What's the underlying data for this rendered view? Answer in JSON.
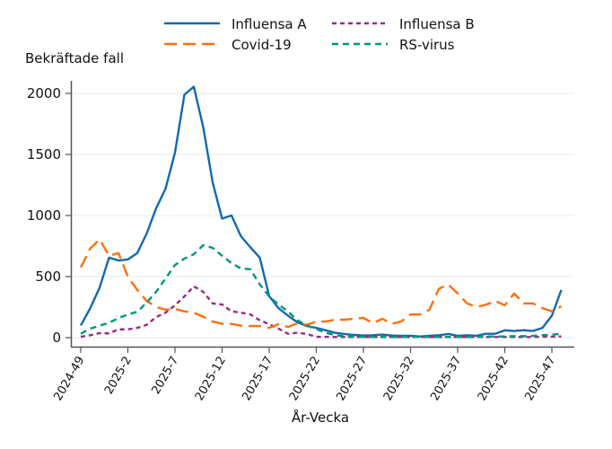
{
  "chart_data": {
    "type": "line",
    "ylabel": "Bekräftade fall",
    "xlabel": "År-Vecka",
    "ylim": [
      0,
      2100
    ],
    "yticks": [
      0,
      500,
      1000,
      1500,
      2000
    ],
    "ytick_labels": [
      "0",
      "500",
      "1000",
      "1500",
      "2000"
    ],
    "xtick_labels": [
      "2024-49",
      "2025-2",
      "2025-7",
      "2025-12",
      "2025-17",
      "2025-22",
      "2025-27",
      "2025-32",
      "2025-37",
      "2025-42",
      "2025-47"
    ],
    "x": [
      "2024-49",
      "2024-50",
      "2024-51",
      "2024-52",
      "2025-1",
      "2025-2",
      "2025-3",
      "2025-4",
      "2025-5",
      "2025-6",
      "2025-7",
      "2025-8",
      "2025-9",
      "2025-10",
      "2025-11",
      "2025-12",
      "2025-13",
      "2025-14",
      "2025-15",
      "2025-16",
      "2025-17",
      "2025-18",
      "2025-19",
      "2025-20",
      "2025-21",
      "2025-22",
      "2025-23",
      "2025-24",
      "2025-25",
      "2025-26",
      "2025-27",
      "2025-28",
      "2025-29",
      "2025-30",
      "2025-31",
      "2025-32",
      "2025-33",
      "2025-34",
      "2025-35",
      "2025-36",
      "2025-37",
      "2025-38",
      "2025-39",
      "2025-40",
      "2025-41",
      "2025-42",
      "2025-43",
      "2025-44",
      "2025-45",
      "2025-46",
      "2025-47",
      "2025-48"
    ],
    "grid": true,
    "legend_position": "top",
    "series": [
      {
        "name": "Influensa A",
        "color": "#1369b0",
        "dash": "solid",
        "values": [
          100,
          240,
          410,
          655,
          632,
          640,
          693,
          853,
          1060,
          1220,
          1515,
          1990,
          2055,
          1723,
          1270,
          975,
          1000,
          830,
          740,
          655,
          340,
          240,
          180,
          125,
          95,
          80,
          60,
          40,
          30,
          22,
          18,
          20,
          25,
          18,
          15,
          15,
          10,
          15,
          20,
          30,
          15,
          20,
          15,
          32,
          32,
          60,
          55,
          61,
          55,
          80,
          180,
          390
        ]
      },
      {
        "name": "Influensa B",
        "color": "#992a88",
        "dash": "short",
        "values": [
          7,
          20,
          37,
          35,
          68,
          68,
          80,
          105,
          168,
          205,
          265,
          338,
          420,
          375,
          280,
          272,
          215,
          205,
          190,
          142,
          110,
          73,
          32,
          40,
          30,
          7,
          7,
          5,
          5,
          5,
          5,
          5,
          5,
          5,
          5,
          5,
          5,
          5,
          5,
          5,
          5,
          5,
          5,
          5,
          5,
          5,
          5,
          5,
          5,
          8,
          8,
          10
        ]
      },
      {
        "name": "Covid-19",
        "color": "#ff6f0f",
        "dash": "long",
        "values": [
          575,
          730,
          805,
          670,
          693,
          500,
          390,
          300,
          252,
          228,
          235,
          215,
          205,
          170,
          132,
          113,
          113,
          98,
          95,
          95,
          80,
          110,
          88,
          118,
          105,
          132,
          132,
          147,
          147,
          155,
          162,
          118,
          155,
          113,
          132,
          190,
          190,
          228,
          400,
          436,
          362,
          280,
          252,
          270,
          300,
          265,
          362,
          280,
          280,
          242,
          215,
          257
        ]
      },
      {
        "name": "RS-virus",
        "color": "#00977d",
        "dash": "medium",
        "values": [
          32,
          73,
          98,
          122,
          160,
          190,
          212,
          287,
          375,
          485,
          595,
          647,
          683,
          757,
          735,
          670,
          610,
          566,
          560,
          436,
          338,
          270,
          215,
          142,
          100,
          70,
          40,
          20,
          10,
          8,
          6,
          5,
          5,
          5,
          5,
          5,
          5,
          5,
          5,
          5,
          5,
          5,
          5,
          10,
          10,
          10,
          12,
          12,
          15,
          20,
          25,
          30
        ]
      }
    ]
  }
}
